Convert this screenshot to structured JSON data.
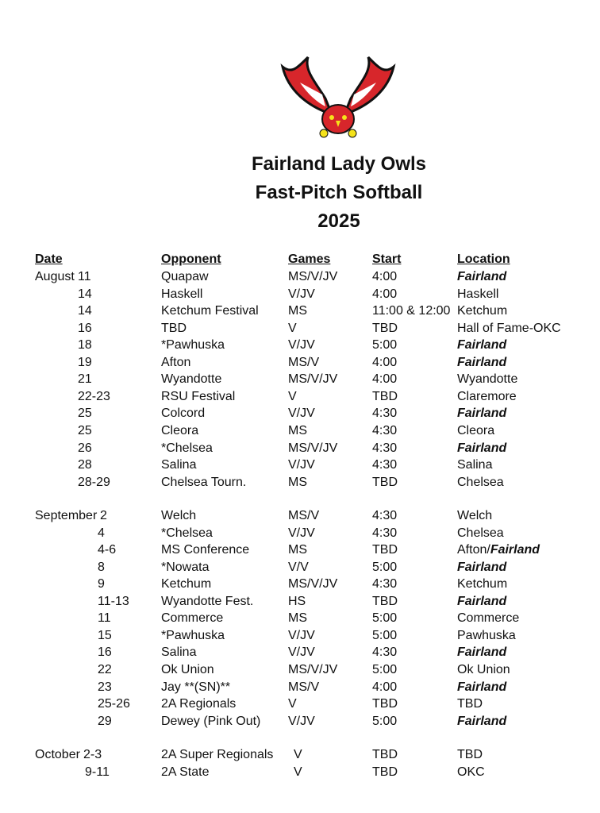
{
  "logo": {
    "description_text": "",
    "colors": {
      "red": "#d7262b",
      "black": "#111111",
      "yellow": "#f5e31a"
    }
  },
  "title": {
    "line1": "Fairland Lady Owls",
    "line2": "Fast-Pitch Softball",
    "line3": "2025"
  },
  "headers": {
    "date": "Date",
    "opponent": "Opponent",
    "games": "Games",
    "start": "Start",
    "location": "Location"
  },
  "sections": [
    {
      "month": "August",
      "rows": [
        {
          "day": "11",
          "opponent": "Quapaw",
          "games": "MS/V/JV",
          "start": "4:00",
          "location": "Fairland",
          "home": true
        },
        {
          "day": "14",
          "opponent": "Haskell",
          "games": "V/JV",
          "start": "4:00",
          "location": "Haskell"
        },
        {
          "day": "14",
          "opponent": "Ketchum Festival",
          "games": "MS",
          "start": "11:00 & 12:00",
          "location": "Ketchum"
        },
        {
          "day": "16",
          "opponent": "TBD",
          "games": "V",
          "start": "TBD",
          "location": "Hall of Fame-OKC"
        },
        {
          "day": "18",
          "opponent": "*Pawhuska",
          "games": "V/JV",
          "start": "5:00",
          "location": "Fairland",
          "home": true
        },
        {
          "day": "19",
          "opponent": "Afton",
          "games": "MS/V",
          "start": "4:00",
          "location": "Fairland",
          "home": true
        },
        {
          "day": "21",
          "opponent": "Wyandotte",
          "games": "MS/V/JV",
          "start": "4:00",
          "location": "Wyandotte"
        },
        {
          "day": "22-23",
          "opponent": "RSU Festival",
          "games": "V",
          "start": "TBD",
          "location": "Claremore"
        },
        {
          "day": "25",
          "opponent": "Colcord",
          "games": "V/JV",
          "start": "4:30",
          "location": "Fairland",
          "home": true
        },
        {
          "day": "25",
          "opponent": "Cleora",
          "games": "MS",
          "start": "4:30",
          "location": "Cleora"
        },
        {
          "day": "26",
          "opponent": "*Chelsea",
          "games": "MS/V/JV",
          "start": "4:30",
          "location": "Fairland",
          "home": true
        },
        {
          "day": "28",
          "opponent": "Salina",
          "games": "V/JV",
          "start": "4:30",
          "location": "Salina"
        },
        {
          "day": "28-29",
          "opponent": "Chelsea Tourn.",
          "games": "MS",
          "start": "TBD",
          "location": "Chelsea"
        }
      ]
    },
    {
      "month": "September",
      "rows": [
        {
          "day": "2",
          "opponent": "Welch",
          "games": "MS/V",
          "start": "4:30",
          "location": "Welch"
        },
        {
          "day": "4",
          "opponent": "*Chelsea",
          "games": "V/JV",
          "start": "4:30",
          "location": "Chelsea"
        },
        {
          "day": "4-6",
          "opponent": "MS Conference",
          "games": "MS",
          "start": "TBD",
          "location": "Afton/",
          "location_bold": "Fairland"
        },
        {
          "day": "8",
          "opponent": "*Nowata",
          "games": "V/V",
          "start": "5:00",
          "location": "Fairland",
          "home": true
        },
        {
          "day": "9",
          "opponent": "Ketchum",
          "games": "MS/V/JV",
          "start": "4:30",
          "location": "Ketchum"
        },
        {
          "day": "11-13",
          "opponent": "Wyandotte Fest.",
          "games": "HS",
          "start": "TBD",
          "location": "Fairland",
          "home": true
        },
        {
          "day": "11",
          "opponent": "Commerce",
          "games": "MS",
          "start": "5:00",
          "location": "Commerce"
        },
        {
          "day": "15",
          "opponent": "*Pawhuska",
          "games": "V/JV",
          "start": "5:00",
          "location": "Pawhuska"
        },
        {
          "day": "16",
          "opponent": "Salina",
          "games": "V/JV",
          "start": "4:30",
          "location": "Fairland",
          "home": true
        },
        {
          "day": "22",
          "opponent": "Ok Union",
          "games": "MS/V/JV",
          "start": "5:00",
          "location": "Ok Union"
        },
        {
          "day": "23",
          "opponent": "Jay **(SN)**",
          "games": "MS/V",
          "start": "4:00",
          "location": "Fairland",
          "home": true
        },
        {
          "day": "25-26",
          "opponent": "2A Regionals",
          "games": "V",
          "start": "TBD",
          "location": "TBD"
        },
        {
          "day": "29",
          "opponent": "Dewey (Pink Out)",
          "games": "V/JV",
          "start": "5:00",
          "location": "Fairland",
          "home": true
        }
      ]
    },
    {
      "month": "October",
      "rows": [
        {
          "day": "2-3",
          "opponent": "2A Super Regionals",
          "games": "V",
          "start": "TBD",
          "location": "TBD"
        },
        {
          "day": "9-11",
          "opponent": "2A State",
          "games": "V",
          "start": "TBD",
          "location": "OKC"
        }
      ]
    }
  ]
}
